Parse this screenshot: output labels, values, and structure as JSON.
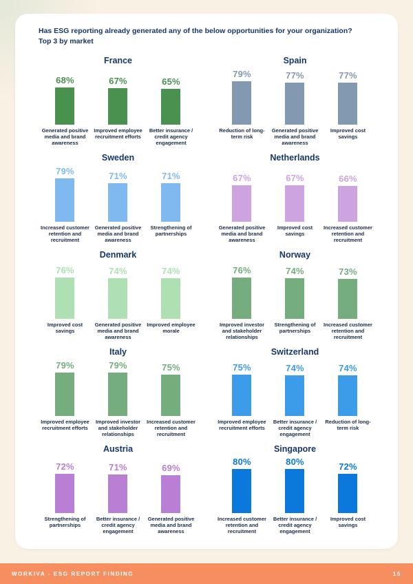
{
  "page": {
    "title_line1": "Has ESG reporting already generated any of the below opportunities for your organization?",
    "title_line2": "Top 3 by market",
    "title_color": "#17376b",
    "card_bg": "#ffffff",
    "page_bg": "#f9f1e4"
  },
  "footer": {
    "left": "WORKIVA - ESG REPORT FINDING",
    "page_number": "15",
    "bg_color": "#f68e5f"
  },
  "chart_data": [
    {
      "type": "bar",
      "title": "France",
      "categories": [
        "Generated positive media and brand awareness",
        "Improved employee recruitment efforts",
        "Better insurance / credit agency engagement"
      ],
      "values": [
        68,
        67,
        65
      ],
      "bar_color": "#4a9150",
      "ylim": [
        0,
        100
      ]
    },
    {
      "type": "bar",
      "title": "Spain",
      "categories": [
        "Reduction of long-term risk",
        "Generated positive media and brand awareness",
        "Improved cost savings"
      ],
      "values": [
        79,
        77,
        77
      ],
      "bar_color": "#8398b1",
      "ylim": [
        0,
        100
      ]
    },
    {
      "type": "bar",
      "title": "Sweden",
      "categories": [
        "Increased customer retention and recruitment",
        "Generated positive media and brand awareness",
        "Strengthening of partnerships"
      ],
      "values": [
        79,
        71,
        71
      ],
      "bar_color": "#7fb9f0",
      "ylim": [
        0,
        100
      ]
    },
    {
      "type": "bar",
      "title": "Netherlands",
      "categories": [
        "Generated positive media and brand awareness",
        "Improved cost savings",
        "Increased customer retention and recruitment"
      ],
      "values": [
        67,
        67,
        66
      ],
      "bar_color": "#cda4e0",
      "ylim": [
        0,
        100
      ]
    },
    {
      "type": "bar",
      "title": "Denmark",
      "categories": [
        "Improved cost savings",
        "Generated positive media and brand awareness",
        "Improved employee morale"
      ],
      "values": [
        76,
        74,
        74
      ],
      "bar_color": "#aee0b4",
      "ylim": [
        0,
        100
      ]
    },
    {
      "type": "bar",
      "title": "Norway",
      "categories": [
        "Improved investor and stakeholder relationships",
        "Strengthening of partnerships",
        "Increased customer retention and recruitment"
      ],
      "values": [
        76,
        74,
        73
      ],
      "bar_color": "#76ad7e",
      "ylim": [
        0,
        100
      ]
    },
    {
      "type": "bar",
      "title": "Italy",
      "categories": [
        "Improved employee recruitment efforts",
        "Improved investor and stakeholder relationships",
        "Increased customer retention and recruitment"
      ],
      "values": [
        79,
        79,
        75
      ],
      "bar_color": "#76ad7e",
      "ylim": [
        0,
        100
      ]
    },
    {
      "type": "bar",
      "title": "Switzerland",
      "categories": [
        "Improved employee recruitment efforts",
        "Better insurance / credit agency engagement",
        "Reduction of long-term risk"
      ],
      "values": [
        75,
        74,
        74
      ],
      "bar_color": "#3d9ce9",
      "ylim": [
        0,
        100
      ]
    },
    {
      "type": "bar",
      "title": "Austria",
      "categories": [
        "Strengthening of partnerships",
        "Better insurance / credit agency engagement",
        "Generated positive media and brand awareness"
      ],
      "values": [
        72,
        71,
        69
      ],
      "bar_color": "#b87fd4",
      "ylim": [
        0,
        100
      ]
    },
    {
      "type": "bar",
      "title": "Singapore",
      "categories": [
        "Increased customer retention and recruitment",
        "Better insurance / credit agency engagement",
        "Improved cost savings"
      ],
      "values": [
        80,
        80,
        72
      ],
      "bar_color": "#0b78dc",
      "ylim": [
        0,
        100
      ]
    }
  ]
}
